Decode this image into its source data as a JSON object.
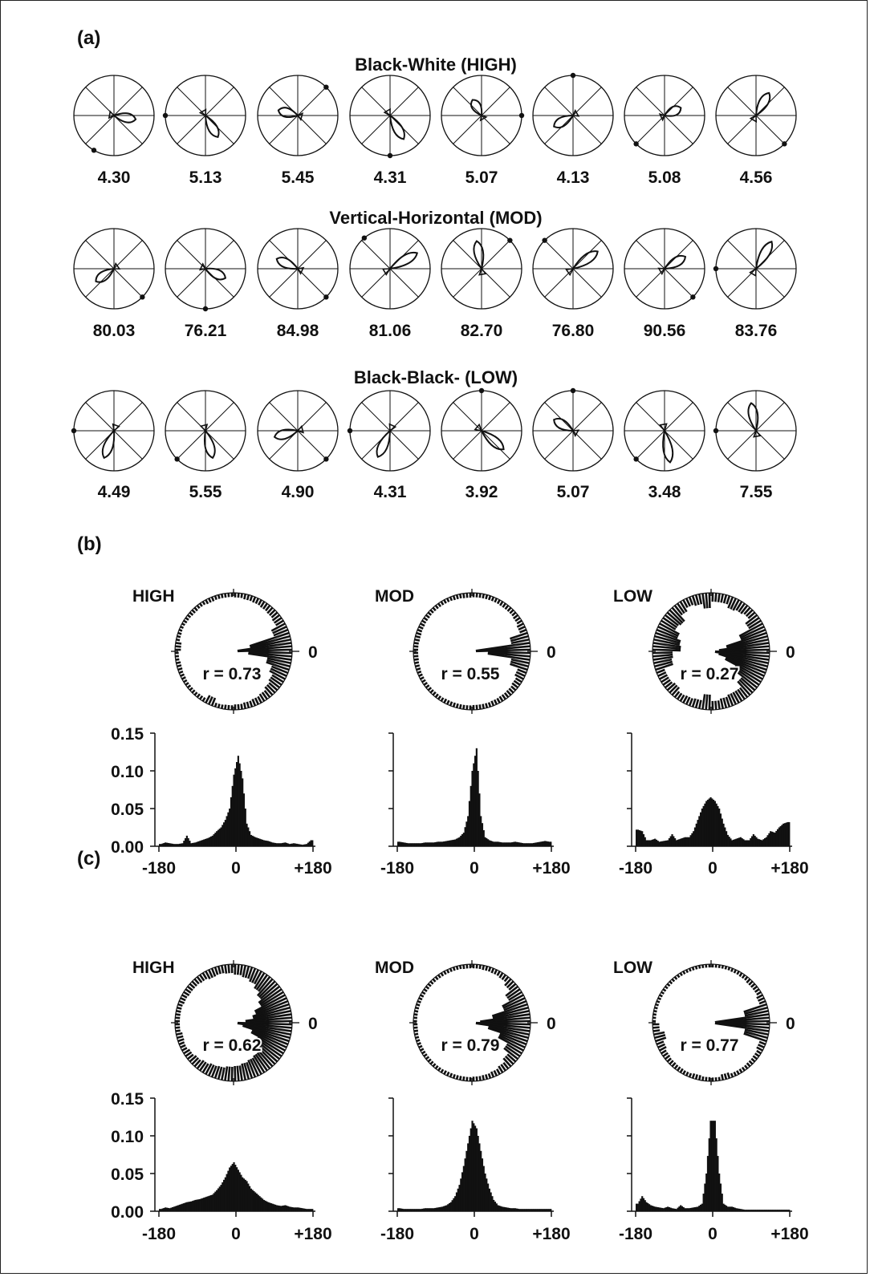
{
  "panels": {
    "a": "(a)",
    "b": "(b)",
    "c": "(c)"
  },
  "chart_data": [
    {
      "type": "polar",
      "panel": "(a)",
      "grid": true,
      "rows": [
        {
          "title": "Black-White (HIGH)",
          "labels": [
            "4.30",
            "5.13",
            "5.45",
            "4.31",
            "5.07",
            "4.13",
            "5.08",
            "4.56"
          ],
          "lobe_angles_deg": [
            -10,
            -60,
            165,
            -60,
            120,
            210,
            25,
            60
          ],
          "lobe_lengths": [
            0.55,
            0.62,
            0.5,
            0.68,
            0.45,
            0.55,
            0.45,
            0.65
          ],
          "dot_angles_deg": [
            240,
            180,
            45,
            270,
            0,
            90,
            225,
            315
          ]
        },
        {
          "title": "Vertical-Horizontal (MOD)",
          "labels": [
            "80.03",
            "76.21",
            "84.98",
            "81.06",
            "82.70",
            "76.80",
            "90.56",
            "83.76"
          ],
          "lobe_angles_deg": [
            215,
            335,
            155,
            30,
            100,
            35,
            30,
            60
          ],
          "lobe_lengths": [
            0.55,
            0.55,
            0.58,
            0.78,
            0.7,
            0.75,
            0.6,
            0.78
          ],
          "dot_angles_deg": [
            315,
            270,
            315,
            130,
            45,
            135,
            315,
            180
          ]
        },
        {
          "title": "Black-Black- (LOW)",
          "labels": [
            "4.49",
            "5.55",
            "4.90",
            "4.31",
            "3.92",
            "5.07",
            "3.48",
            "7.55"
          ],
          "lobe_angles_deg": [
            250,
            285,
            195,
            245,
            320,
            150,
            280,
            100
          ],
          "lobe_lengths": [
            0.72,
            0.7,
            0.6,
            0.72,
            0.72,
            0.55,
            0.8,
            0.7
          ],
          "dot_angles_deg": [
            180,
            225,
            315,
            180,
            90,
            90,
            225,
            180
          ]
        }
      ]
    },
    {
      "type": "bar",
      "panel": "(b)",
      "xlabel": "",
      "ylabel": "",
      "x_ticks": [
        "-180",
        "0",
        "+180"
      ],
      "y_ticks": [
        "0.00",
        "0.05",
        "0.10",
        "0.15"
      ],
      "ylim": [
        0,
        0.15
      ],
      "xlim": [
        -180,
        180
      ],
      "circle_zero_label": "0",
      "subplots": [
        {
          "name": "HIGH",
          "r_label": "r = 0.73",
          "x": [
            -175,
            -165,
            -155,
            -145,
            -135,
            -125,
            -115,
            -105,
            -95,
            -85,
            -75,
            -65,
            -55,
            -45,
            -35,
            -25,
            -15,
            -5,
            5,
            15,
            25,
            35,
            45,
            55,
            65,
            75,
            85,
            95,
            105,
            115,
            125,
            135,
            145,
            155,
            165,
            175
          ],
          "values": [
            0.003,
            0.005,
            0.004,
            0.003,
            0.003,
            0.004,
            0.014,
            0.004,
            0.005,
            0.007,
            0.009,
            0.011,
            0.014,
            0.02,
            0.025,
            0.035,
            0.05,
            0.095,
            0.12,
            0.09,
            0.03,
            0.015,
            0.012,
            0.01,
            0.008,
            0.007,
            0.005,
            0.004,
            0.004,
            0.005,
            0.003,
            0.004,
            0.003,
            0.002,
            0.003,
            0.008
          ]
        },
        {
          "name": "MOD",
          "r_label": "r = 0.55",
          "x": [
            -175,
            -165,
            -155,
            -145,
            -135,
            -125,
            -115,
            -105,
            -95,
            -85,
            -75,
            -65,
            -55,
            -45,
            -35,
            -25,
            -15,
            -5,
            5,
            15,
            25,
            35,
            45,
            55,
            65,
            75,
            85,
            95,
            105,
            115,
            125,
            135,
            145,
            155,
            165,
            175
          ],
          "values": [
            0.006,
            0.005,
            0.004,
            0.004,
            0.004,
            0.004,
            0.005,
            0.005,
            0.005,
            0.006,
            0.006,
            0.007,
            0.008,
            0.009,
            0.012,
            0.018,
            0.04,
            0.1,
            0.13,
            0.04,
            0.012,
            0.008,
            0.006,
            0.006,
            0.005,
            0.005,
            0.005,
            0.006,
            0.005,
            0.004,
            0.004,
            0.004,
            0.005,
            0.006,
            0.007,
            0.006
          ]
        },
        {
          "name": "LOW",
          "r_label": "r = 0.27",
          "x": [
            -175,
            -165,
            -155,
            -145,
            -135,
            -125,
            -115,
            -105,
            -95,
            -85,
            -75,
            -65,
            -55,
            -45,
            -35,
            -25,
            -15,
            -5,
            5,
            15,
            25,
            35,
            45,
            55,
            65,
            75,
            85,
            95,
            105,
            115,
            125,
            135,
            145,
            155,
            165,
            175
          ],
          "values": [
            0.022,
            0.02,
            0.008,
            0.008,
            0.01,
            0.006,
            0.007,
            0.008,
            0.016,
            0.008,
            0.01,
            0.012,
            0.012,
            0.02,
            0.035,
            0.05,
            0.06,
            0.065,
            0.06,
            0.05,
            0.03,
            0.015,
            0.008,
            0.01,
            0.012,
            0.008,
            0.008,
            0.016,
            0.01,
            0.008,
            0.012,
            0.02,
            0.018,
            0.025,
            0.03,
            0.032
          ]
        }
      ]
    },
    {
      "type": "bar",
      "panel": "(c)",
      "xlabel": "",
      "ylabel": "",
      "x_ticks": [
        "-180",
        "0",
        "+180"
      ],
      "y_ticks": [
        "0.00",
        "0.05",
        "0.10",
        "0.15"
      ],
      "ylim": [
        0,
        0.15
      ],
      "xlim": [
        -180,
        180
      ],
      "circle_zero_label": "0",
      "subplots": [
        {
          "name": "HIGH",
          "r_label": "r = 0.62",
          "x": [
            -175,
            -165,
            -155,
            -145,
            -135,
            -125,
            -115,
            -105,
            -95,
            -85,
            -75,
            -65,
            -55,
            -45,
            -35,
            -25,
            -15,
            -5,
            5,
            15,
            25,
            35,
            45,
            55,
            65,
            75,
            85,
            95,
            105,
            115,
            125,
            135,
            145,
            155,
            165,
            175
          ],
          "values": [
            0.003,
            0.005,
            0.004,
            0.006,
            0.008,
            0.01,
            0.012,
            0.013,
            0.015,
            0.016,
            0.018,
            0.02,
            0.022,
            0.028,
            0.035,
            0.045,
            0.058,
            0.065,
            0.055,
            0.045,
            0.04,
            0.03,
            0.025,
            0.02,
            0.015,
            0.012,
            0.01,
            0.008,
            0.007,
            0.008,
            0.006,
            0.005,
            0.005,
            0.004,
            0.003,
            0.003
          ]
        },
        {
          "name": "MOD",
          "r_label": "r = 0.79",
          "x": [
            -175,
            -165,
            -155,
            -145,
            -135,
            -125,
            -115,
            -105,
            -95,
            -85,
            -75,
            -65,
            -55,
            -45,
            -35,
            -25,
            -15,
            -5,
            5,
            15,
            25,
            35,
            45,
            55,
            65,
            75,
            85,
            95,
            105,
            115,
            125,
            135,
            145,
            155,
            165,
            175
          ],
          "values": [
            0.004,
            0.003,
            0.003,
            0.003,
            0.003,
            0.003,
            0.004,
            0.004,
            0.004,
            0.005,
            0.006,
            0.008,
            0.012,
            0.02,
            0.035,
            0.06,
            0.09,
            0.12,
            0.11,
            0.08,
            0.05,
            0.03,
            0.015,
            0.008,
            0.006,
            0.005,
            0.004,
            0.004,
            0.003,
            0.003,
            0.003,
            0.003,
            0.003,
            0.003,
            0.003,
            0.003
          ]
        },
        {
          "name": "LOW",
          "r_label": "r = 0.77",
          "x": [
            -175,
            -165,
            -155,
            -145,
            -135,
            -125,
            -115,
            -105,
            -95,
            -85,
            -75,
            -65,
            -55,
            -45,
            -35,
            -25,
            -15,
            -5,
            5,
            15,
            25,
            35,
            45,
            55,
            65,
            75,
            85,
            95,
            105,
            115,
            125,
            135,
            145,
            155,
            165,
            175
          ],
          "values": [
            0.01,
            0.02,
            0.012,
            0.008,
            0.006,
            0.005,
            0.004,
            0.006,
            0.004,
            0.003,
            0.008,
            0.004,
            0.004,
            0.005,
            0.006,
            0.01,
            0.05,
            0.12,
            0.12,
            0.05,
            0.01,
            0.006,
            0.006,
            0.004,
            0.003,
            0.002,
            0.002,
            0.002,
            0.002,
            0.002,
            0.002,
            0.002,
            0.002,
            0.002,
            0.002,
            0.002
          ]
        }
      ]
    }
  ]
}
